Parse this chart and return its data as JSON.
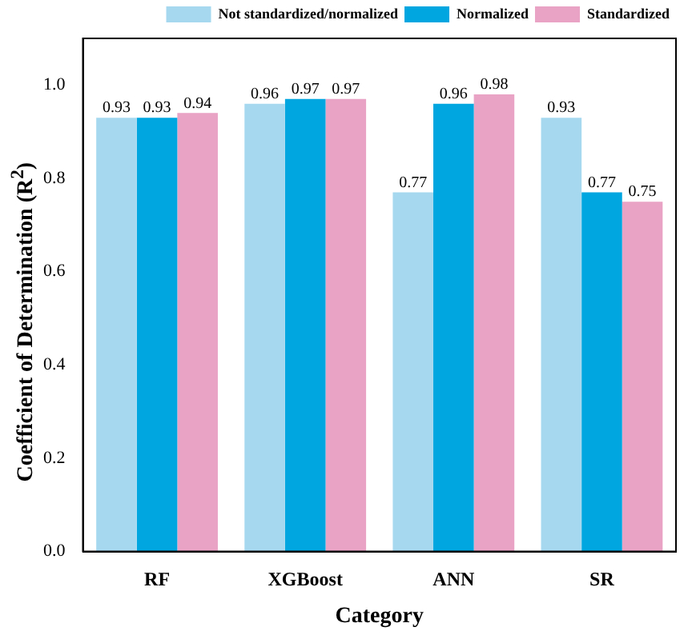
{
  "chart_data": {
    "type": "bar",
    "xlabel": "Category",
    "ylabel": "Coefficient of Determination (R$^{2}$)",
    "categories": [
      "RF",
      "XGBoost",
      "ANN",
      "SR"
    ],
    "series": [
      {
        "name": "Not standardized/normalized",
        "color": "#a6d9f0",
        "values": [
          0.93,
          0.96,
          0.77,
          0.93
        ]
      },
      {
        "name": "Normalized",
        "color": "#00a6e0",
        "values": [
          0.93,
          0.97,
          0.96,
          0.77
        ]
      },
      {
        "name": "Standardized",
        "color": "#e9a3c4",
        "values": [
          0.94,
          0.97,
          0.98,
          0.75
        ]
      }
    ],
    "ylim": [
      0,
      1.1
    ],
    "yticks": [
      {
        "value": 0,
        "label": "0.0"
      },
      0.2,
      0.4,
      0.6,
      0.8,
      {
        "value": 1,
        "label": "1.0"
      }
    ],
    "grid": false,
    "legend": "top right",
    "data_labels": true
  }
}
